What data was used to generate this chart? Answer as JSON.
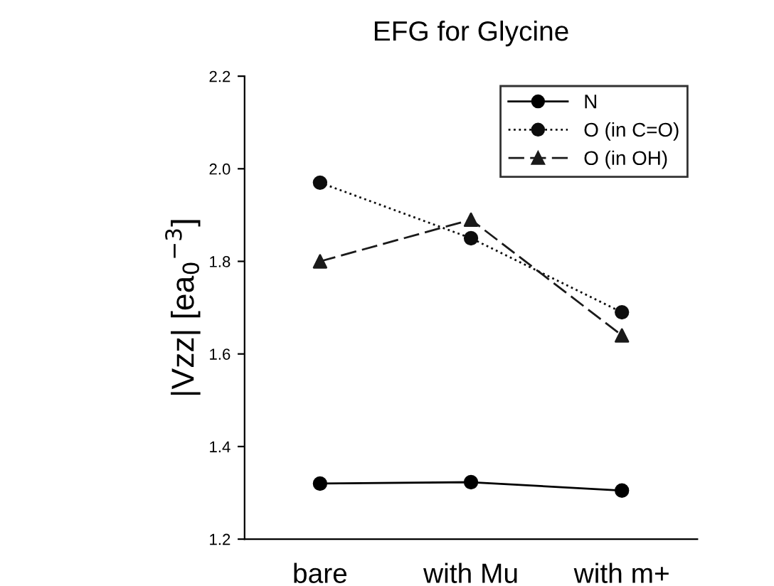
{
  "chart_data": {
    "type": "line",
    "title": "EFG for Glycine",
    "ylabel": "|Vzz| [ea$_{0}$$^{−3}$]",
    "categories": [
      "bare",
      "with Mu",
      "with m+"
    ],
    "series": [
      {
        "name": "N",
        "color": "#000000",
        "values": [
          1.32,
          1.323,
          1.305
        ],
        "marker": "circle",
        "line_style": "solid"
      },
      {
        "name": "O (in C=O)",
        "color": "#0d0d0d",
        "values": [
          1.97,
          1.85,
          1.69
        ],
        "marker": "circle",
        "line_style": "dotted"
      },
      {
        "name": "O (in OH)",
        "color": "#1a1a1a",
        "values": [
          1.8,
          1.89,
          1.64
        ],
        "marker": "triangle",
        "line_style": "dashed"
      }
    ],
    "ylim": [
      1.2,
      2.2
    ],
    "yticks": [
      1.2,
      1.4,
      1.6,
      1.8,
      {
        "value": 2.0,
        "label": "2.0"
      },
      2.2
    ],
    "grid": false,
    "legend": "top right"
  }
}
